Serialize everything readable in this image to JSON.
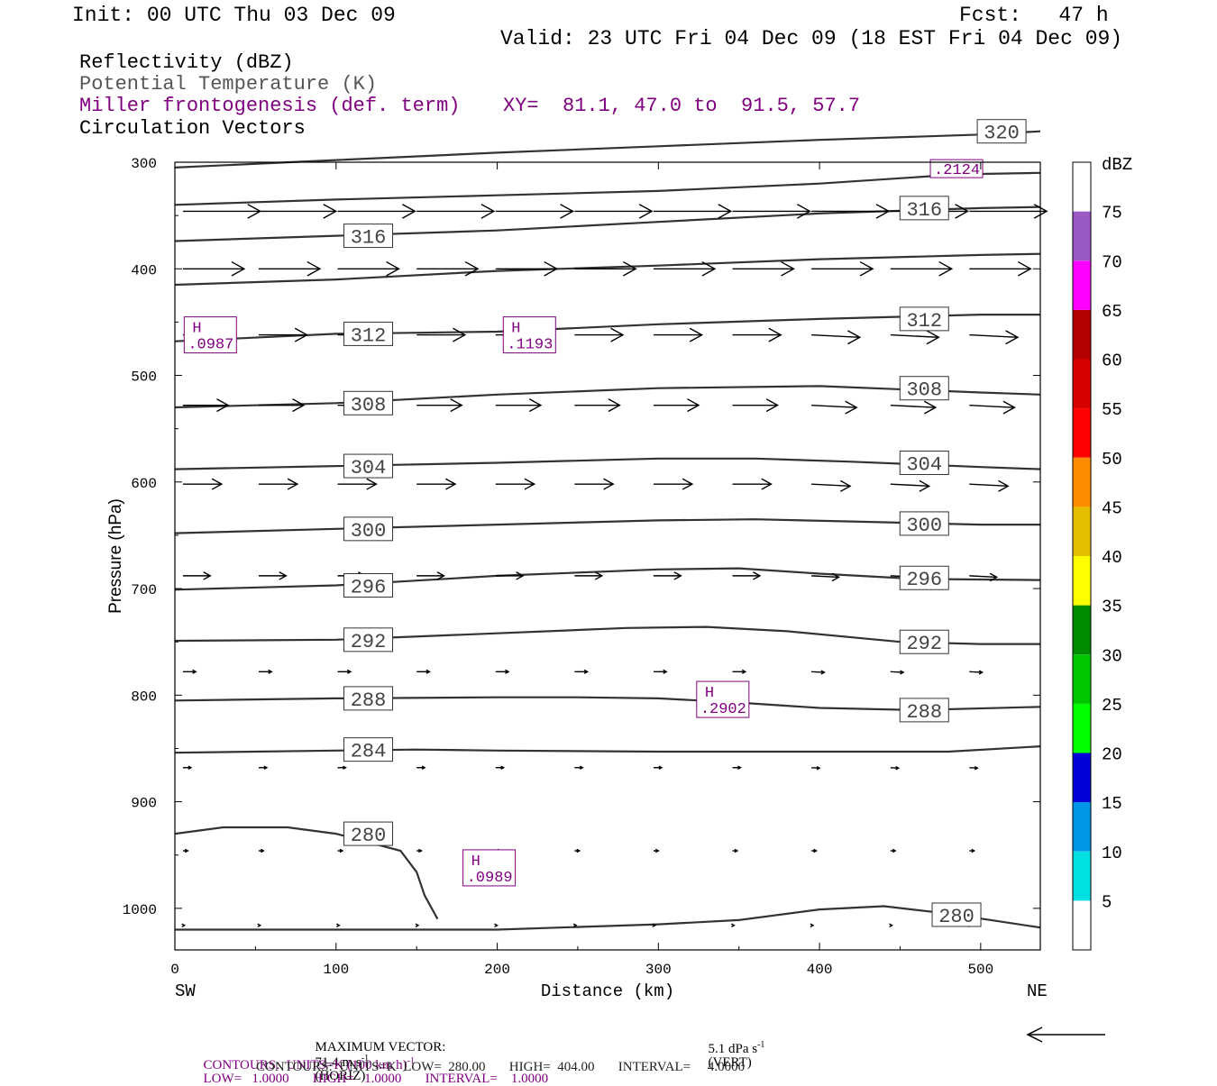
{
  "header": {
    "init": "Init: 00 UTC Thu 03 Dec 09",
    "fcst": "Fcst:   47 h",
    "valid": "Valid: 23 UTC Fri 04 Dec 09 (18 EST Fri 04 Dec 09)"
  },
  "legend": {
    "reflectivity": "Reflectivity (dBZ)",
    "theta": "Potential Temperature (K)",
    "frontogenesis": "Miller frontogenesis (def. term)",
    "xy": "XY=  81.1, 47.0 to  91.5, 57.7",
    "vectors": "Circulation Vectors"
  },
  "footer": {
    "max_vector_label": "MAXIMUM VECTOR:",
    "max_horiz": "71.4 m s",
    "max_horiz_unit": "(HORIZ)",
    "max_vert": "5.1 dPa s",
    "max_vert_unit": "(VERT)",
    "contours1_a": "CONTOURS:  UNITS=K (100 km h)",
    "contours1_b": "LOW=   1.0000       HIGH=   1.0000       INTERVAL=    1.0000",
    "contours2": "CONTOURS:  UNITS=K  LOW=  280.00       HIGH=  404.00       INTERVAL=     4.0000",
    "sup_neg1": "-1"
  },
  "colors": {
    "purple": "#800080",
    "theta_line": "#333333",
    "vector": "#000000"
  },
  "chart_data": {
    "type": "line",
    "xlabel": "Distance (km)",
    "ylabel": "Pressure (hPa)",
    "x_ticks": [
      0,
      100,
      200,
      300,
      400,
      500
    ],
    "y_ticks": [
      300,
      400,
      500,
      600,
      700,
      800,
      900,
      1000
    ],
    "xlim": [
      0,
      537
    ],
    "ylim": [
      1039,
      300
    ],
    "endpoints": {
      "left": "SW",
      "right": "NE"
    },
    "theta_contours": [
      {
        "value": "320",
        "label": "320",
        "points": [
          [
            0,
            305
          ],
          [
            100,
            298
          ],
          [
            200,
            291
          ],
          [
            300,
            285
          ],
          [
            400,
            279
          ],
          [
            500,
            274
          ],
          [
            537,
            271
          ]
        ]
      },
      {
        "value": "320b",
        "label": "",
        "points": [
          [
            0,
            340
          ],
          [
            100,
            335
          ],
          [
            200,
            331
          ],
          [
            300,
            327
          ],
          [
            400,
            320
          ],
          [
            470,
            313
          ],
          [
            500,
            311
          ],
          [
            537,
            310
          ]
        ]
      },
      {
        "value": "316",
        "label": "316",
        "points": [
          [
            0,
            374
          ],
          [
            100,
            369
          ],
          [
            200,
            364
          ],
          [
            300,
            356
          ],
          [
            400,
            348
          ],
          [
            500,
            343
          ],
          [
            537,
            342
          ]
        ]
      },
      {
        "value": "316b",
        "label": "316",
        "points": [
          [
            0,
            415
          ],
          [
            100,
            410
          ],
          [
            200,
            402
          ],
          [
            300,
            397
          ],
          [
            400,
            391
          ],
          [
            500,
            387
          ],
          [
            537,
            386
          ]
        ]
      },
      {
        "value": "312",
        "label": "312",
        "points": [
          [
            0,
            468
          ],
          [
            100,
            461
          ],
          [
            200,
            459
          ],
          [
            300,
            452
          ],
          [
            400,
            447
          ],
          [
            500,
            443
          ],
          [
            537,
            443
          ]
        ]
      },
      {
        "value": "308",
        "label": "308",
        "points": [
          [
            0,
            530
          ],
          [
            100,
            526
          ],
          [
            200,
            518
          ],
          [
            300,
            512
          ],
          [
            400,
            510
          ],
          [
            500,
            516
          ],
          [
            537,
            518
          ]
        ]
      },
      {
        "value": "304",
        "label": "304",
        "points": [
          [
            0,
            588
          ],
          [
            100,
            585
          ],
          [
            200,
            582
          ],
          [
            300,
            578
          ],
          [
            360,
            578
          ],
          [
            420,
            581
          ],
          [
            500,
            586
          ],
          [
            537,
            588
          ]
        ]
      },
      {
        "value": "300",
        "label": "300",
        "points": [
          [
            0,
            648
          ],
          [
            100,
            644
          ],
          [
            200,
            640
          ],
          [
            300,
            636
          ],
          [
            360,
            635
          ],
          [
            420,
            637
          ],
          [
            500,
            640
          ],
          [
            537,
            640
          ]
        ]
      },
      {
        "value": "296",
        "label": "296",
        "points": [
          [
            0,
            701
          ],
          [
            100,
            697
          ],
          [
            200,
            688
          ],
          [
            300,
            682
          ],
          [
            350,
            681
          ],
          [
            400,
            686
          ],
          [
            460,
            691
          ],
          [
            537,
            692
          ]
        ]
      },
      {
        "value": "292",
        "label": "292",
        "points": [
          [
            0,
            749
          ],
          [
            100,
            748
          ],
          [
            200,
            742
          ],
          [
            280,
            737
          ],
          [
            330,
            736
          ],
          [
            380,
            740
          ],
          [
            450,
            750
          ],
          [
            500,
            752
          ],
          [
            537,
            752
          ]
        ]
      },
      {
        "value": "288",
        "label": "288",
        "points": [
          [
            0,
            805
          ],
          [
            100,
            803
          ],
          [
            200,
            802
          ],
          [
            250,
            802
          ],
          [
            300,
            803
          ],
          [
            350,
            807
          ],
          [
            400,
            812
          ],
          [
            460,
            814
          ],
          [
            537,
            811
          ]
        ]
      },
      {
        "value": "284",
        "label": "284",
        "points": [
          [
            0,
            854
          ],
          [
            100,
            852
          ],
          [
            150,
            851
          ],
          [
            200,
            852
          ],
          [
            300,
            853
          ],
          [
            400,
            853
          ],
          [
            480,
            853
          ],
          [
            537,
            848
          ]
        ]
      },
      {
        "value": "280",
        "label": "280",
        "points": [
          [
            0,
            930
          ],
          [
            30,
            924
          ],
          [
            70,
            924
          ],
          [
            100,
            930
          ],
          [
            140,
            946
          ],
          [
            150,
            966
          ],
          [
            155,
            988
          ],
          [
            163,
            1010
          ]
        ]
      },
      {
        "value": "280b",
        "label": "280",
        "points": [
          [
            0,
            1020
          ],
          [
            200,
            1020
          ],
          [
            300,
            1015
          ],
          [
            350,
            1011
          ],
          [
            400,
            1001
          ],
          [
            440,
            998
          ],
          [
            480,
            1005
          ],
          [
            537,
            1018
          ]
        ]
      }
    ],
    "frontogenesis_maxima": [
      {
        "label": "H",
        "value": ".0987",
        "x": 22,
        "p": 462
      },
      {
        "label": "H",
        "value": ".1193",
        "x": 220,
        "p": 462
      },
      {
        "label": "H",
        "value": ".2902",
        "x": 340,
        "p": 804
      },
      {
        "label": "H",
        "value": ".0989",
        "x": 195,
        "p": 962
      },
      {
        "label": "",
        "value": ".2124",
        "x": 485,
        "p": 306
      }
    ],
    "vector_rows": [
      {
        "p": 346,
        "len_km": 48,
        "dip": 0
      },
      {
        "p": 400,
        "len_km": 38,
        "dip": 0
      },
      {
        "p": 462,
        "len_km": 30,
        "dip": 1
      },
      {
        "p": 528,
        "len_km": 28,
        "dip": 1
      },
      {
        "p": 602,
        "len_km": 24,
        "dip": 1
      },
      {
        "p": 688,
        "len_km": 17,
        "dip": 1
      },
      {
        "p": 778,
        "len_km": 8,
        "dip": 1
      },
      {
        "p": 868,
        "len_km": 5,
        "dip": 1
      },
      {
        "p": 946,
        "len_km": 3,
        "dip": 0
      },
      {
        "p": 1016,
        "len_km": 1,
        "dip": 0
      }
    ],
    "colorbar": {
      "unit": "dBZ",
      "labels": [
        "5",
        "10",
        "15",
        "20",
        "25",
        "30",
        "35",
        "40",
        "45",
        "50",
        "55",
        "60",
        "65",
        "70",
        "75"
      ],
      "colors": [
        "#ffffff",
        "#00e0e0",
        "#0096e6",
        "#0000d8",
        "#00ff00",
        "#00c800",
        "#008c00",
        "#ffff00",
        "#e6be00",
        "#ff8c00",
        "#ff0000",
        "#d80000",
        "#b40000",
        "#ff00ff",
        "#9b59c6"
      ]
    }
  }
}
